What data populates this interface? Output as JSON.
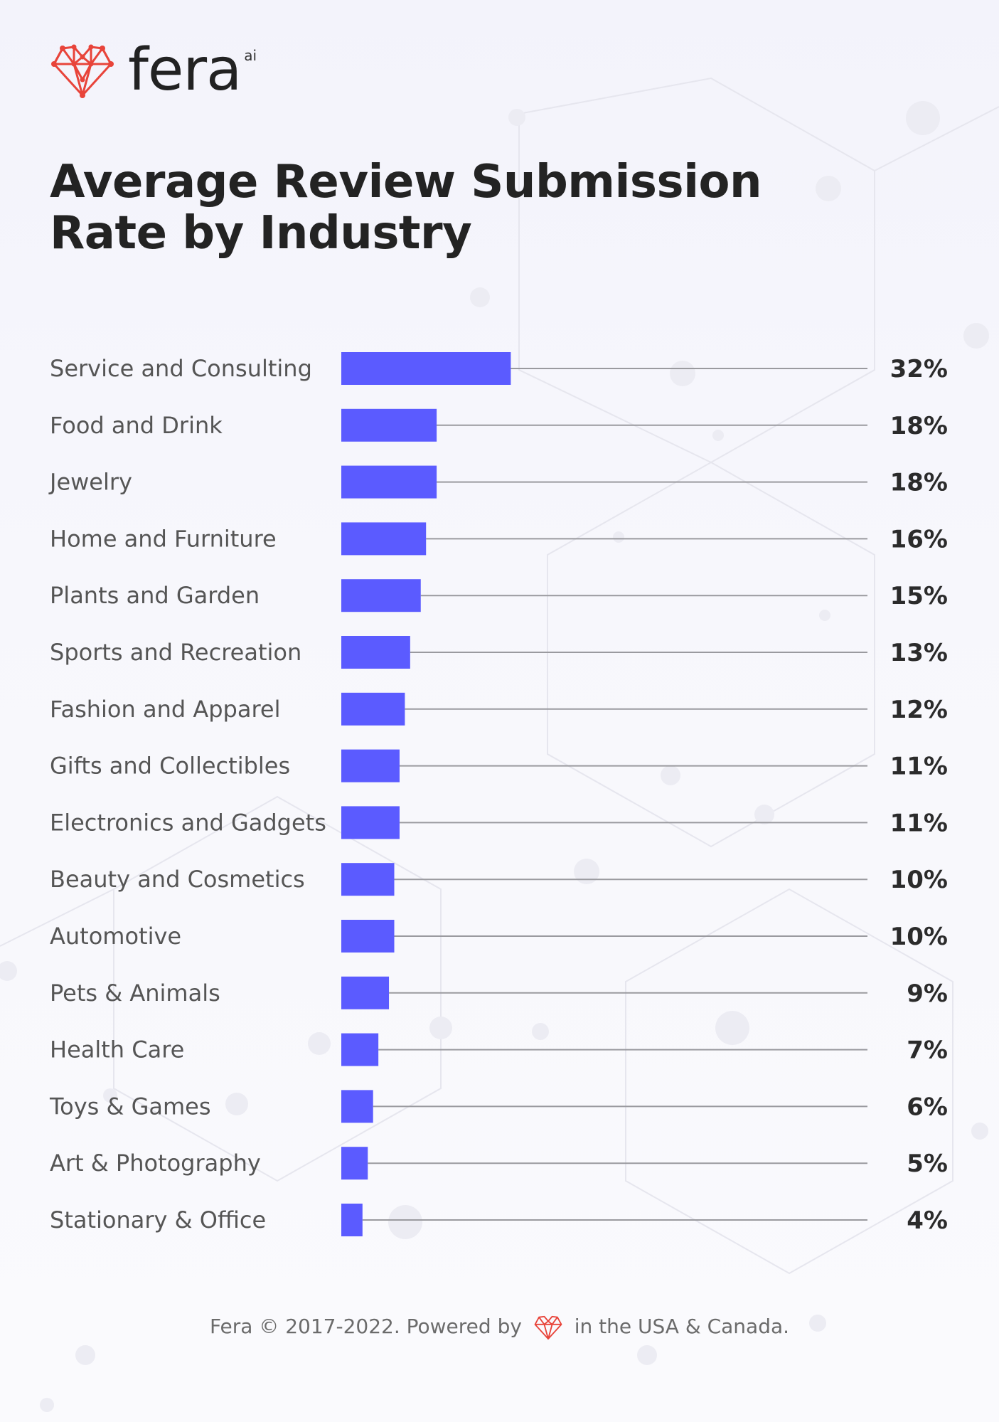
{
  "brand": {
    "name": "fera",
    "superscript": "ai"
  },
  "colors": {
    "bar": "#5b5bff",
    "guide": "#9a9a9f",
    "label": "#555555",
    "value": "#2b2b2b",
    "logo": "#e8443a"
  },
  "footer": {
    "before": "Fera © 2017-2022. Powered by",
    "after": "in the USA & Canada."
  },
  "chart_data": {
    "type": "bar",
    "orientation": "horizontal",
    "title": "Average Review Submission Rate by Industry",
    "categories": [
      "Service and Consulting",
      "Food and Drink",
      "Jewelry",
      "Home and Furniture",
      "Plants and Garden",
      "Sports and Recreation",
      "Fashion and Apparel",
      "Gifts and Collectibles",
      "Electronics and Gadgets",
      "Beauty and Cosmetics",
      "Automotive",
      "Pets & Animals",
      "Health Care",
      "Toys & Games",
      "Art & Photography",
      "Stationary & Office"
    ],
    "values": [
      32,
      18,
      18,
      16,
      15,
      13,
      12,
      11,
      11,
      10,
      10,
      9,
      7,
      6,
      5,
      4
    ],
    "value_labels": [
      "32%",
      "18%",
      "18%",
      "16%",
      "15%",
      "13%",
      "12%",
      "11%",
      "11%",
      "10%",
      "10%",
      "9%",
      "7%",
      "6%",
      "5%",
      "4%"
    ],
    "unit": "%",
    "grid": false,
    "legend": "none"
  }
}
